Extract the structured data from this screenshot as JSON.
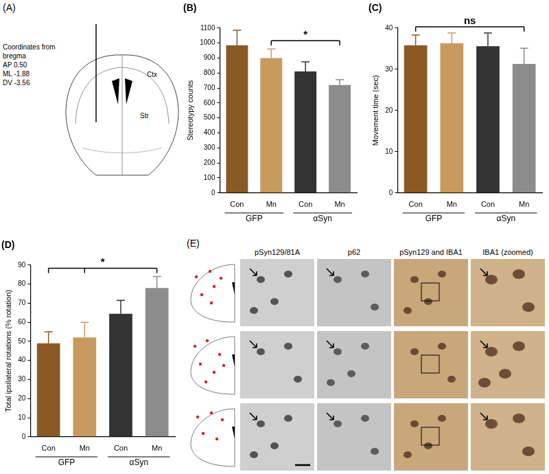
{
  "chart_data": [
    {
      "type": "bar",
      "title": "(B)",
      "ylabel": "Stereotypy counts",
      "groups": [
        {
          "label": "GFP",
          "categories": [
            "Con",
            "Mn"
          ]
        },
        {
          "label": "αSyn",
          "categories": [
            "Con",
            "Mn"
          ]
        }
      ],
      "values": [
        985,
        900,
        810,
        720
      ],
      "errors": [
        100,
        60,
        65,
        35
      ],
      "colors": [
        "#8b5a24",
        "#c99a5e",
        "#333333",
        "#8c8c8c"
      ],
      "ylim": [
        0,
        1100
      ],
      "yticks": [
        0,
        100,
        200,
        300,
        400,
        500,
        600,
        700,
        800,
        900,
        1000,
        1100
      ],
      "grid": false,
      "annotations": [
        {
          "from": [
            1
          ],
          "to": 3,
          "text": "*"
        }
      ]
    },
    {
      "type": "bar",
      "title": "(C)",
      "ylabel": "Movement time (sec)",
      "groups": [
        {
          "label": "GFP",
          "categories": [
            "Con",
            "Mn"
          ]
        },
        {
          "label": "αSyn",
          "categories": [
            "Con",
            "Mn"
          ]
        }
      ],
      "values": [
        35.8,
        36.3,
        35.6,
        31.3
      ],
      "errors": [
        2.5,
        2.5,
        3.2,
        3.8
      ],
      "colors": [
        "#8b5a24",
        "#c99a5e",
        "#333333",
        "#8c8c8c"
      ],
      "ylim": [
        0,
        40
      ],
      "yticks": [
        0,
        10,
        20,
        30,
        40
      ],
      "grid": false,
      "annotations": [
        {
          "from": [
            0
          ],
          "to": 3,
          "text": "ns"
        }
      ]
    },
    {
      "type": "bar",
      "title": "(D)",
      "ylabel": "Total ipsilateral rotations (% rotation)",
      "groups": [
        {
          "label": "GFP",
          "categories": [
            "Con",
            "Mn"
          ]
        },
        {
          "label": "αSyn",
          "categories": [
            "Con",
            "Mn"
          ]
        }
      ],
      "values": [
        49,
        52,
        64.5,
        78
      ],
      "errors": [
        6,
        8,
        7,
        6
      ],
      "colors": [
        "#8b5a24",
        "#c99a5e",
        "#333333",
        "#8c8c8c"
      ],
      "ylim": [
        0,
        90
      ],
      "yticks": [
        0,
        10,
        20,
        30,
        40,
        50,
        60,
        70,
        80,
        90
      ],
      "grid": false,
      "annotations": [
        {
          "from": [
            0,
            1
          ],
          "to": 3,
          "text": "*"
        }
      ]
    }
  ],
  "diagram": {
    "label": "(A)",
    "coordinates": [
      "Coordinates from",
      "bregma",
      "AP 0.50",
      "ML -1.88",
      "DV -3.56"
    ],
    "regions": [
      "Ctx",
      "Str"
    ]
  },
  "micrographs": {
    "label": "(E)",
    "columns": [
      "pSyn129/81A",
      "p62",
      "pSyn129 and IBA1",
      "IBA1 (zoomed)"
    ]
  }
}
